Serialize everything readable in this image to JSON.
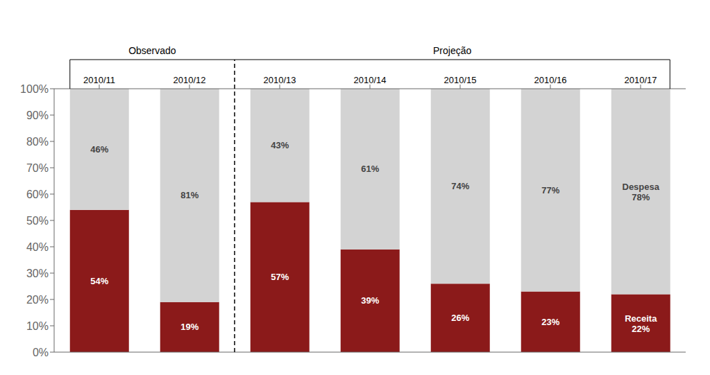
{
  "chart_data": {
    "type": "bar",
    "stacked": true,
    "categories": [
      "2010/11",
      "2010/12",
      "2010/13",
      "2010/14",
      "2010/15",
      "2010/16",
      "2010/17"
    ],
    "series": [
      {
        "name": "Receita",
        "color": "#8B1A1A",
        "values": [
          54,
          19,
          57,
          39,
          26,
          23,
          22
        ],
        "value_labels": [
          "54%",
          "19%",
          "57%",
          "39%",
          "26%",
          "23%",
          "22%"
        ]
      },
      {
        "name": "Despesa",
        "color": "#D3D3D3",
        "values": [
          46,
          81,
          43,
          61,
          74,
          77,
          78
        ],
        "value_labels": [
          "46%",
          "81%",
          "43%",
          "61%",
          "74%",
          "77%",
          "78%"
        ]
      }
    ],
    "data_labels": true,
    "ylim": [
      0,
      100
    ],
    "yticks": [
      {
        "value": 0,
        "label": "0%"
      },
      {
        "value": 10,
        "label": "10%"
      },
      {
        "value": 20,
        "label": "20%"
      },
      {
        "value": 30,
        "label": "30%"
      },
      {
        "value": 40,
        "label": "40%"
      },
      {
        "value": 50,
        "label": "50%"
      },
      {
        "value": 60,
        "label": "60%"
      },
      {
        "value": 70,
        "label": "70%"
      },
      {
        "value": 80,
        "label": "80%"
      },
      {
        "value": 90,
        "label": "90%"
      },
      {
        "value": 100,
        "label": "100%"
      }
    ],
    "grid": false,
    "annotations": [
      {
        "text": "Observado",
        "categories": [
          "2010/11",
          "2010/12"
        ]
      },
      {
        "text": "Projeção",
        "categories": [
          "2010/13",
          "2010/14",
          "2010/15",
          "2010/16",
          "2010/17"
        ]
      }
    ]
  }
}
